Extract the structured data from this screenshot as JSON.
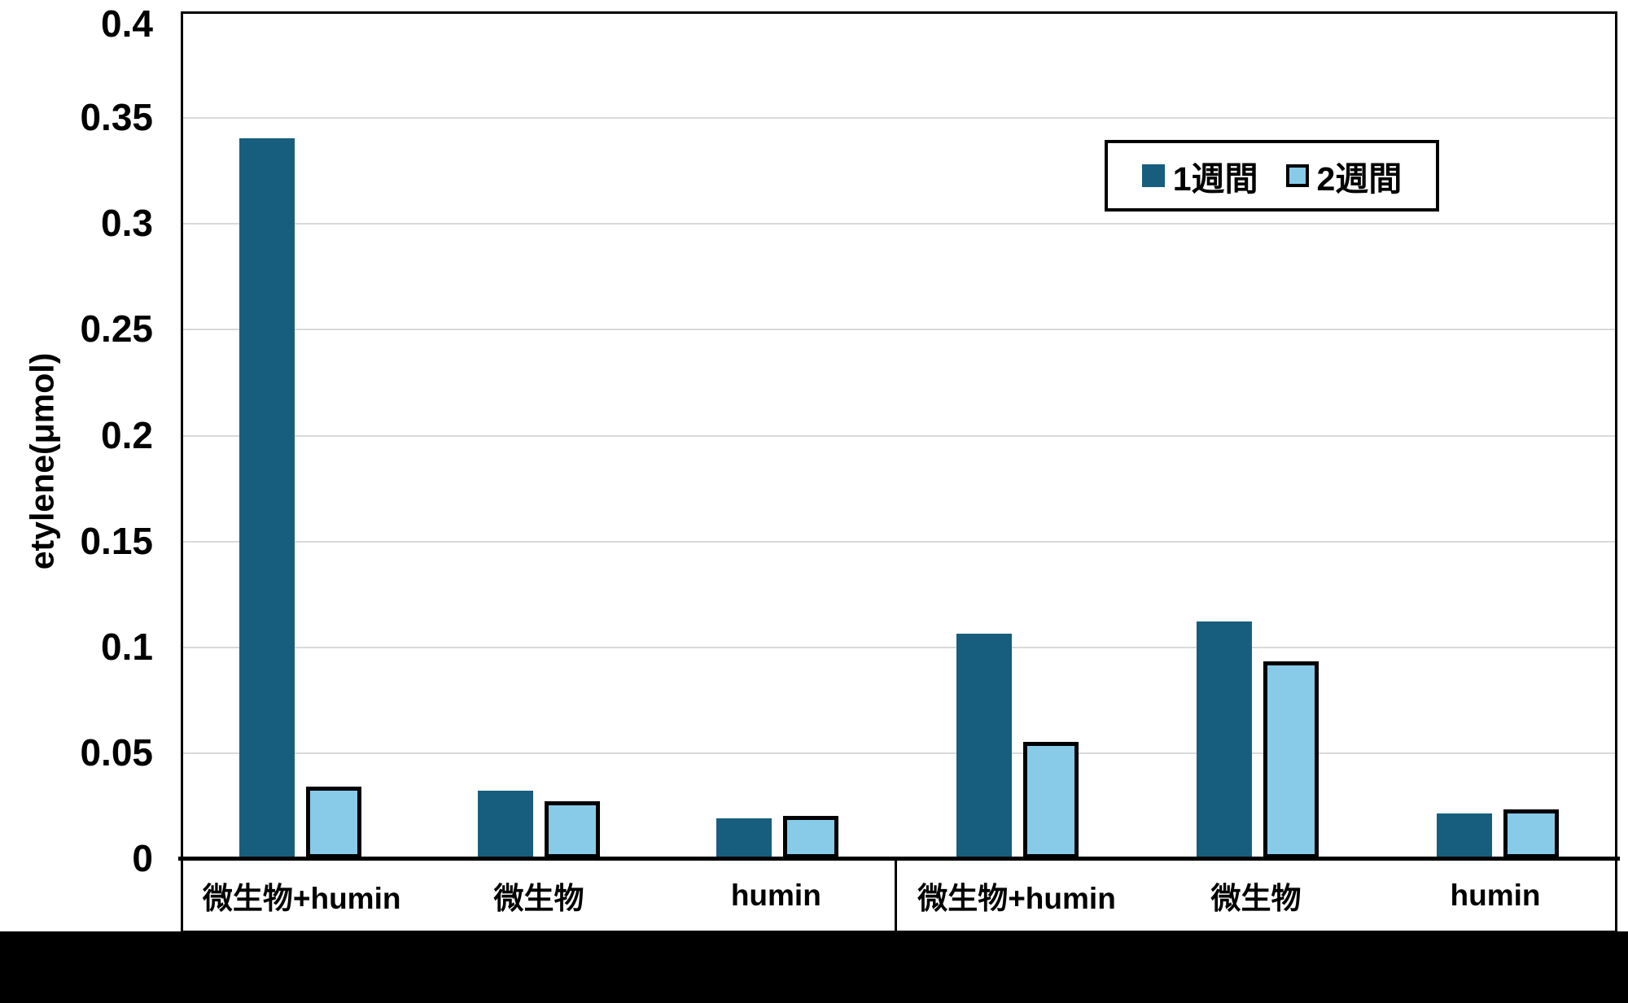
{
  "chart_data": {
    "type": "bar",
    "title": "",
    "ylabel": "etylene(μmol)",
    "xlabel": "",
    "ylim": [
      0,
      0.4
    ],
    "ytick_step": 0.05,
    "ytick_labels": [
      "0",
      "0.05",
      "0.1",
      "0.15",
      "0.2",
      "0.25",
      "0.3",
      "0.35",
      "0.4"
    ],
    "grid": true,
    "legend_position": "top-right",
    "groups": [
      {
        "categories": [
          "微生物+humin",
          "微生物",
          "humin"
        ]
      },
      {
        "categories": [
          "微生物+humin",
          "微生物",
          "humin"
        ]
      }
    ],
    "series": [
      {
        "name": "1週間",
        "color": "#175e7e",
        "values": [
          0.34,
          0.032,
          0.019,
          0.106,
          0.112,
          0.021
        ]
      },
      {
        "name": "2週間",
        "color": "#87cbe8",
        "border_color": "#000000",
        "values": [
          0.034,
          0.027,
          0.02,
          0.055,
          0.093,
          0.023
        ]
      }
    ]
  },
  "legend": {
    "items": [
      {
        "label": "1週間"
      },
      {
        "label": "2週間"
      }
    ]
  },
  "colors": {
    "grid": "#d9d9d9",
    "axis": "#000000",
    "background": "#ffffff",
    "bottom_band": "#000000"
  }
}
